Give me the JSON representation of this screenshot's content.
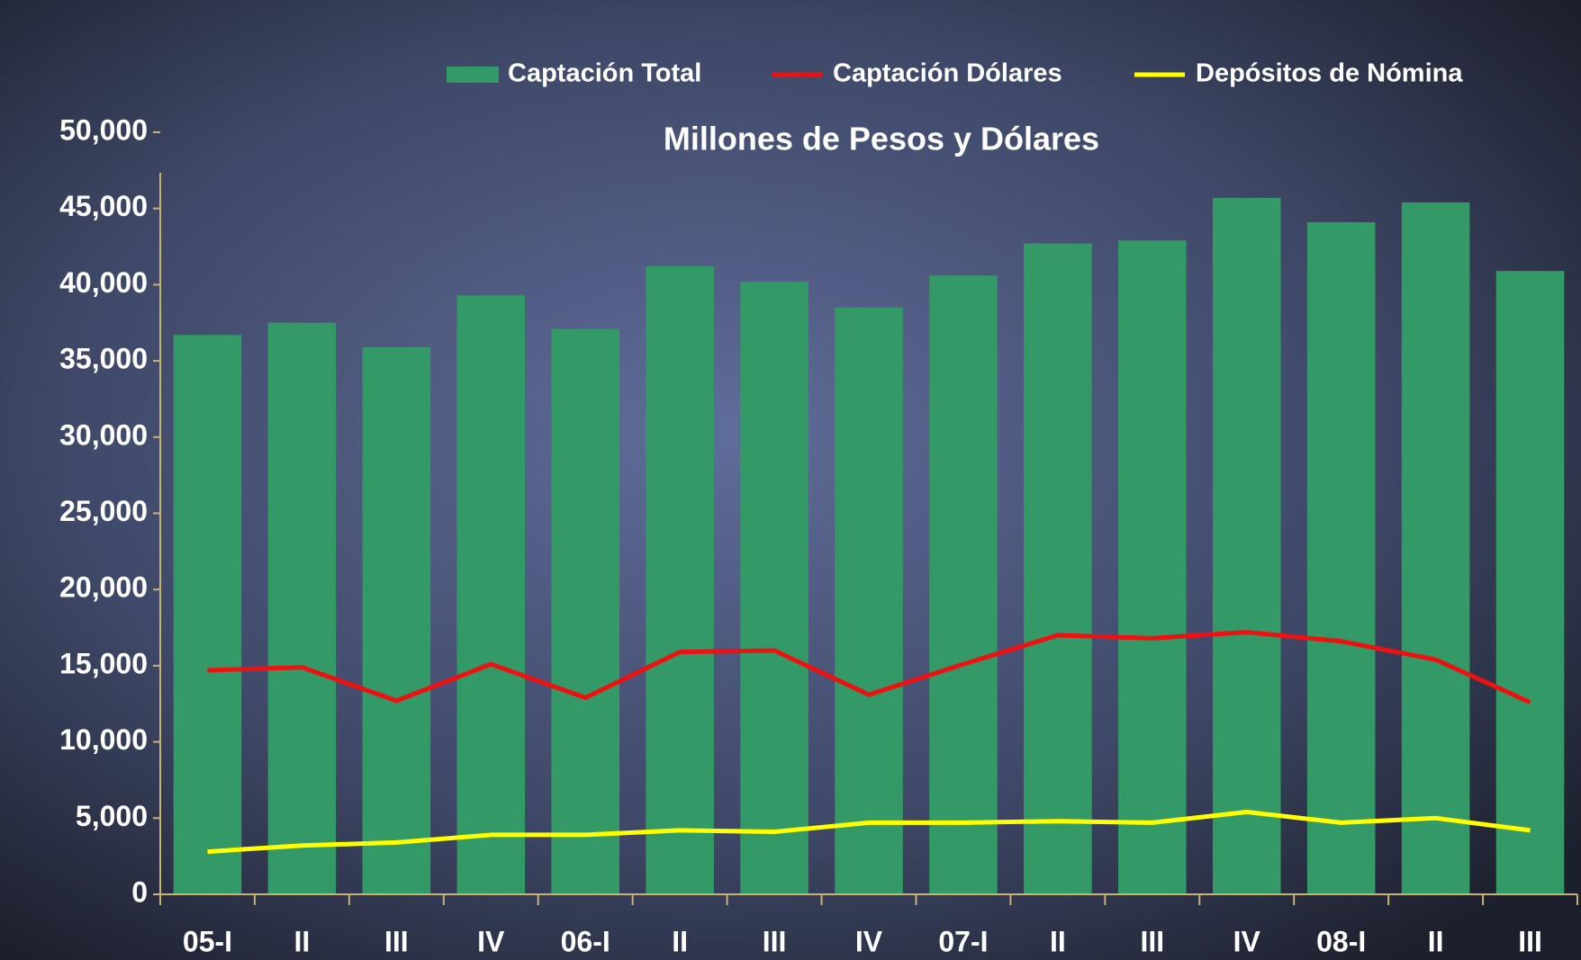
{
  "chart_data": {
    "type": "bar",
    "title": "Millones de Pesos y Dólares",
    "categories": [
      "05-I",
      "II",
      "III",
      "IV",
      "06-I",
      "II",
      "III",
      "IV",
      "07-I",
      "II",
      "III",
      "IV",
      "08-I",
      "II",
      "III"
    ],
    "series": [
      {
        "name": "Captación Total",
        "type": "bar",
        "color": "#339966",
        "values": [
          36700,
          37500,
          35900,
          39300,
          37100,
          41200,
          40200,
          38500,
          40600,
          42700,
          42900,
          45700,
          44100,
          45400,
          40900
        ]
      },
      {
        "name": "Captación Dólares",
        "type": "line",
        "color": "#ee1111",
        "values": [
          14700,
          14900,
          12700,
          15100,
          12900,
          15900,
          16000,
          13100,
          15100,
          17000,
          16800,
          17200,
          16600,
          15400,
          12600
        ]
      },
      {
        "name": "Depósitos de Nómina",
        "type": "line",
        "color": "#ffff00",
        "values": [
          2800,
          3200,
          3400,
          3900,
          3900,
          4200,
          4100,
          4700,
          4700,
          4800,
          4700,
          5400,
          4700,
          5000,
          4200
        ]
      }
    ],
    "ylim": [
      0,
      50000
    ],
    "yticks": [
      0,
      {
        "value": 5000,
        "label": "5,000"
      },
      {
        "value": 10000,
        "label": "10,000"
      },
      {
        "value": 15000,
        "label": "15,000"
      },
      {
        "value": 20000,
        "label": "20,000"
      },
      {
        "value": 25000,
        "label": "25,000"
      },
      {
        "value": 30000,
        "label": "30,000"
      },
      {
        "value": 35000,
        "label": "35,000"
      },
      {
        "value": 40000,
        "label": "40,000"
      },
      {
        "value": 45000,
        "label": "45,000"
      },
      {
        "value": 50000,
        "label": "50,000"
      }
    ],
    "legend": "top"
  }
}
